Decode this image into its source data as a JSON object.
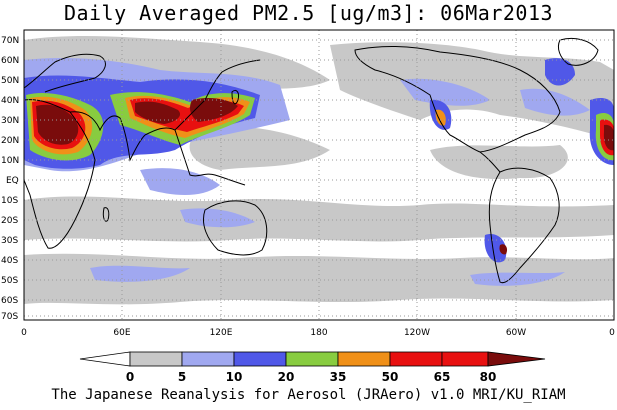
{
  "title": "Daily Averaged PM2.5 [ug/m3]: 06Mar2013",
  "credit": "The Japanese Reanalysis for Aerosol (JRAero) v1.0 MRI/KU_RIAM",
  "lat_ticks": [
    "70N",
    "60N",
    "50N",
    "40N",
    "30N",
    "20N",
    "10N",
    "EQ",
    "10S",
    "20S",
    "30S",
    "40S",
    "50S",
    "60S",
    "70S"
  ],
  "lon_ticks": [
    "0",
    "60E",
    "120E",
    "180",
    "120W",
    "60W",
    "0"
  ],
  "colorbar": {
    "labels": [
      "0",
      "5",
      "10",
      "20",
      "35",
      "50",
      "65",
      "80"
    ],
    "colors": [
      "#ffffff",
      "#c8c8c8",
      "#a0a8f0",
      "#5058e8",
      "#88cc40",
      "#f09018",
      "#e81010",
      "#7a0c0c"
    ]
  },
  "palette": {
    "land": "#ffffff",
    "ocean": "#ffffff",
    "coastline": "#000000",
    "grid": "#9a9a9a"
  }
}
